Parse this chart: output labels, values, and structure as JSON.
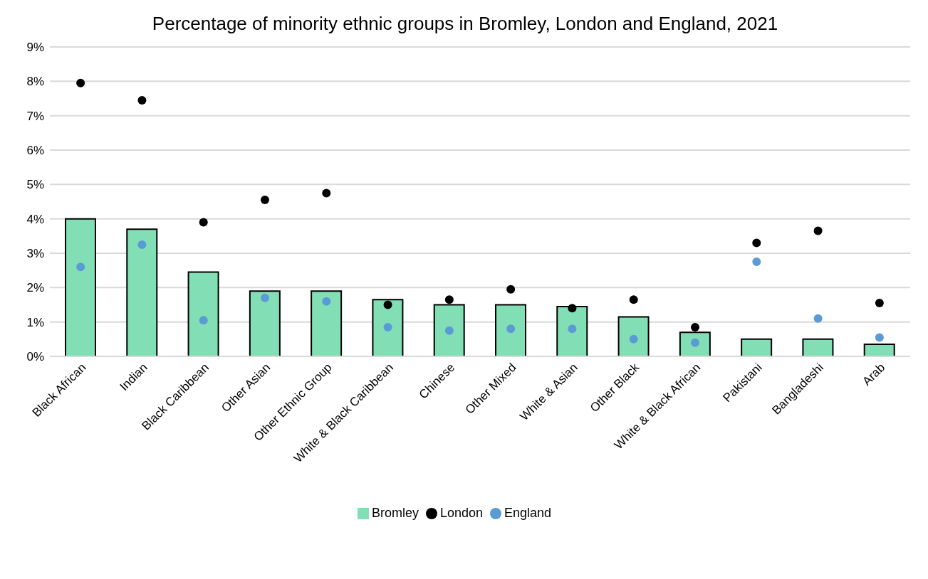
{
  "chart_data": {
    "type": "bar",
    "title": "Percentage of minority ethnic groups in Bromley, London and England, 2021",
    "categories": [
      "Black African",
      "Indian",
      "Black Caribbean",
      "Other Asian",
      "Other Ethnic Group",
      "White & Black Caribbean",
      "Chinese",
      "Other Mixed",
      "White & Asian",
      "Other Black",
      "White & Black African",
      "Pakistani",
      "Bangladeshi",
      "Arab"
    ],
    "series": [
      {
        "name": "Bromley",
        "color": "#82dfb5",
        "values": [
          4.0,
          3.7,
          2.45,
          1.9,
          1.9,
          1.65,
          1.5,
          1.5,
          1.45,
          1.15,
          0.7,
          0.5,
          0.5,
          0.35
        ]
      },
      {
        "name": "London",
        "type": "scatter",
        "color": "#000000",
        "values": [
          7.95,
          7.45,
          3.9,
          4.55,
          4.75,
          1.5,
          1.65,
          1.95,
          1.4,
          1.65,
          0.85,
          3.3,
          3.65,
          1.55
        ]
      },
      {
        "name": "England",
        "type": "scatter",
        "color": "#5b9bd5",
        "values": [
          2.6,
          3.25,
          1.05,
          1.7,
          1.6,
          0.85,
          0.75,
          0.8,
          0.8,
          0.5,
          0.4,
          2.75,
          1.1,
          0.55
        ]
      }
    ],
    "ylim": [
      0,
      9
    ],
    "yticks": [
      {
        "value": 0,
        "label": "0%"
      },
      {
        "value": 1,
        "label": "1%"
      },
      {
        "value": 2,
        "label": "2%"
      },
      {
        "value": 3,
        "label": "3%"
      },
      {
        "value": 4,
        "label": "4%"
      },
      {
        "value": 5,
        "label": "5%"
      },
      {
        "value": 6,
        "label": "6%"
      },
      {
        "value": 7,
        "label": "7%"
      },
      {
        "value": 8,
        "label": "8%"
      },
      {
        "value": 9,
        "label": "9%"
      }
    ],
    "grid": "y",
    "legend": "bottom",
    "marker": "circle"
  }
}
